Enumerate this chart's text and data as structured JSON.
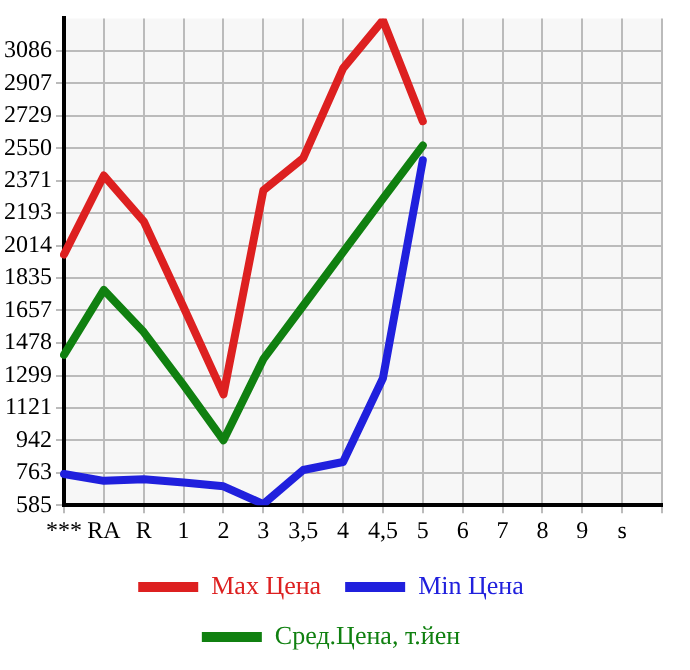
{
  "chart_data": {
    "type": "line",
    "categories": [
      "***",
      "RA",
      "R",
      "1",
      "2",
      "3",
      "3,5",
      "4",
      "4,5",
      "5",
      "6",
      "7",
      "8",
      "9",
      "s",
      null
    ],
    "series": [
      {
        "name": "Max Цена",
        "color": "#dd2020",
        "values": [
          1965,
          2400,
          2148,
          1675,
          1195,
          2318,
          2496,
          2990,
          3255,
          2699,
          null,
          null,
          null,
          null,
          null,
          null
        ]
      },
      {
        "name": "Min Цена",
        "color": "#2020dd",
        "values": [
          757,
          719,
          728,
          710,
          689,
          591,
          779,
          823,
          1284,
          2484,
          null,
          null,
          null,
          null,
          null,
          null
        ]
      },
      {
        "name": "Сред.Цена, т.йен",
        "color": "#108010",
        "values": [
          1413,
          1770,
          1538,
          1246,
          942,
          1389,
          1683,
          1978,
          2273,
          2565,
          null,
          null,
          null,
          null,
          null,
          null
        ]
      }
    ],
    "ylim": [
      585,
      3265
    ],
    "yticks": [
      585,
      763,
      942,
      1121,
      1299,
      1478,
      1657,
      1835,
      2014,
      2193,
      2371,
      2550,
      2729,
      2907,
      3086
    ],
    "grid": true,
    "legend": "bottom",
    "marker": "none",
    "line_style": "solid"
  }
}
